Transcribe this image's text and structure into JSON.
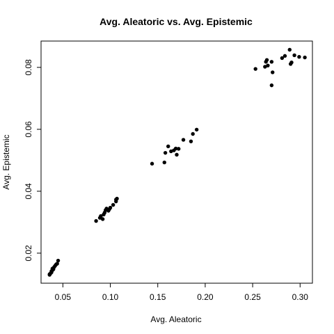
{
  "chart_data": {
    "type": "scatter",
    "title": "Avg. Aleatoric vs. Avg. Epistemic",
    "xlabel": "Avg. Aleatoric",
    "ylabel": "Avg. Epistemic",
    "xlim": [
      0.027,
      0.313
    ],
    "ylim": [
      0.0103,
      0.0885
    ],
    "x_ticks": [
      {
        "value": 0.05,
        "label": "0.05"
      },
      {
        "value": 0.1,
        "label": "0.10"
      },
      {
        "value": 0.15,
        "label": "0.15"
      },
      {
        "value": 0.2,
        "label": "0.20"
      },
      {
        "value": 0.25,
        "label": "0.25"
      },
      {
        "value": 0.3,
        "label": "0.30"
      }
    ],
    "y_ticks": [
      {
        "value": 0.02,
        "label": "0.02"
      },
      {
        "value": 0.04,
        "label": "0.04"
      },
      {
        "value": 0.06,
        "label": "0.06"
      },
      {
        "value": 0.08,
        "label": "0.08"
      }
    ],
    "grid": false,
    "legend": "none",
    "point_color": "#000000",
    "points": [
      [
        0.036,
        0.0132
      ],
      [
        0.037,
        0.0135
      ],
      [
        0.038,
        0.0138
      ],
      [
        0.038,
        0.0142
      ],
      [
        0.039,
        0.0145
      ],
      [
        0.04,
        0.0148
      ],
      [
        0.04,
        0.0152
      ],
      [
        0.041,
        0.0156
      ],
      [
        0.042,
        0.016
      ],
      [
        0.043,
        0.0164
      ],
      [
        0.044,
        0.0166
      ],
      [
        0.045,
        0.0176
      ],
      [
        0.036,
        0.013
      ],
      [
        0.039,
        0.015
      ],
      [
        0.085,
        0.0304
      ],
      [
        0.089,
        0.0314
      ],
      [
        0.09,
        0.032
      ],
      [
        0.092,
        0.031
      ],
      [
        0.093,
        0.0325
      ],
      [
        0.094,
        0.0331
      ],
      [
        0.095,
        0.0339
      ],
      [
        0.096,
        0.0344
      ],
      [
        0.098,
        0.0337
      ],
      [
        0.099,
        0.0342
      ],
      [
        0.1,
        0.0347
      ],
      [
        0.103,
        0.0356
      ],
      [
        0.106,
        0.0367
      ],
      [
        0.106,
        0.0373
      ],
      [
        0.107,
        0.0376
      ],
      [
        0.144,
        0.0489
      ],
      [
        0.157,
        0.0493
      ],
      [
        0.158,
        0.0524
      ],
      [
        0.161,
        0.0545
      ],
      [
        0.164,
        0.0529
      ],
      [
        0.167,
        0.0532
      ],
      [
        0.169,
        0.0538
      ],
      [
        0.17,
        0.0518
      ],
      [
        0.172,
        0.0537
      ],
      [
        0.177,
        0.0566
      ],
      [
        0.185,
        0.0561
      ],
      [
        0.187,
        0.0585
      ],
      [
        0.191,
        0.0599
      ],
      [
        0.253,
        0.0795
      ],
      [
        0.263,
        0.0802
      ],
      [
        0.264,
        0.0818
      ],
      [
        0.265,
        0.0824
      ],
      [
        0.266,
        0.0806
      ],
      [
        0.27,
        0.0818
      ],
      [
        0.27,
        0.0742
      ],
      [
        0.271,
        0.0784
      ],
      [
        0.281,
        0.083
      ],
      [
        0.284,
        0.0837
      ],
      [
        0.289,
        0.0857
      ],
      [
        0.29,
        0.0811
      ],
      [
        0.291,
        0.0816
      ],
      [
        0.294,
        0.0839
      ],
      [
        0.299,
        0.0834
      ],
      [
        0.305,
        0.0832
      ]
    ]
  }
}
